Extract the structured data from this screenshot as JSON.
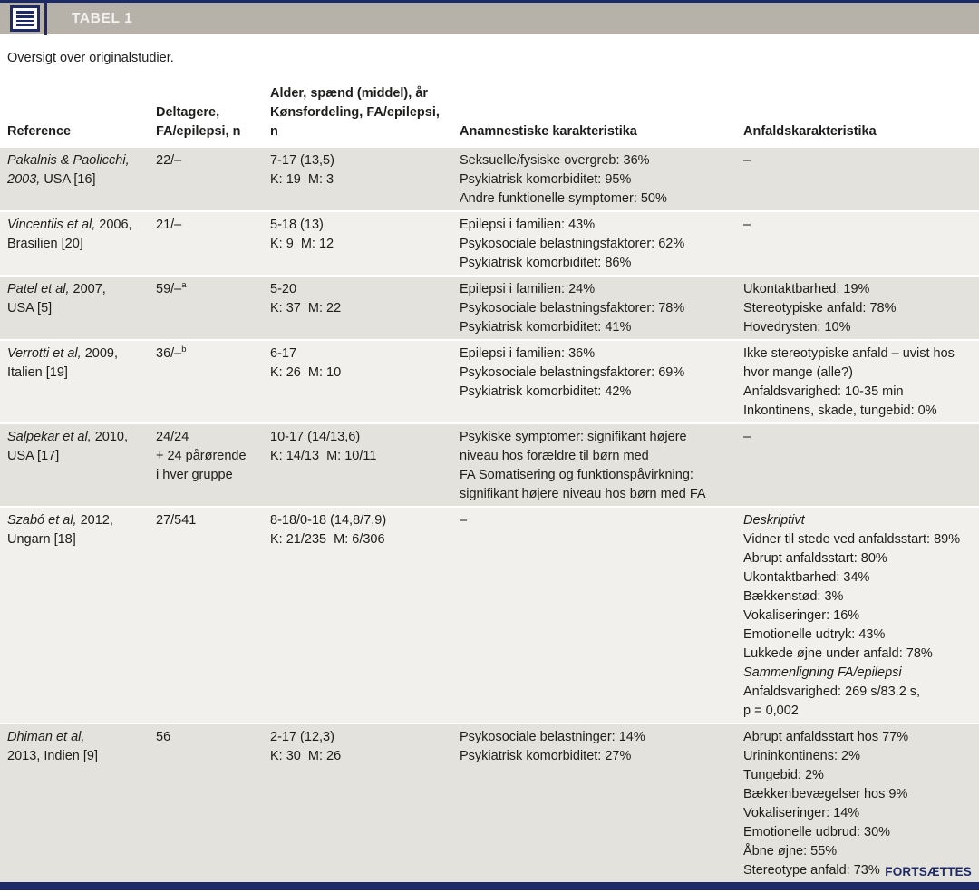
{
  "header": {
    "tag_label": "TABEL 1",
    "caption": "Oversigt over originalstudier."
  },
  "icons": {
    "title_icon": "table-list-icon"
  },
  "colors": {
    "navy": "#1e2a68",
    "bar_bg": "#b7b2a9",
    "row_shade_dark": "#e4e2dd",
    "row_shade_light": "#f1f0ed"
  },
  "footer": {
    "label": "FORTSÆTTES"
  },
  "table": {
    "headers": [
      {
        "lines": [
          "Reference"
        ]
      },
      {
        "lines": [
          "Deltagere,",
          "FA/epilepsi, n"
        ]
      },
      {
        "lines": [
          "Alder, spænd (middel), år",
          "Kønsfordeling, FA/epilepsi, n"
        ]
      },
      {
        "lines": [
          "Anamnestiske karakteristika"
        ]
      },
      {
        "lines": [
          "Anfaldskarakteristika"
        ]
      }
    ],
    "rows": [
      {
        "reference": [
          [
            {
              "t": "Pakalnis & Paolicchi,",
              "i": true
            }
          ],
          [
            {
              "t": "2003,",
              "i": true
            },
            {
              "t": " USA [16]"
            }
          ]
        ],
        "participants": [
          [
            "22/–"
          ]
        ],
        "age_gender": [
          [
            "7-17 (13,5)"
          ],
          [
            "K: 19  M: 3"
          ]
        ],
        "anamnestic": [
          [
            "Seksuelle/fysiske overgreb: 36%"
          ],
          [
            "Psykiatrisk komorbiditet: 95%"
          ],
          [
            "Andre funktionelle symptomer: 50%"
          ]
        ],
        "seizure": [
          [
            "–"
          ]
        ]
      },
      {
        "reference": [
          [
            {
              "t": "Vincentiis et al,",
              "i": true
            },
            {
              "t": " 2006,"
            }
          ],
          [
            {
              "t": "Brasilien [20]"
            }
          ]
        ],
        "participants": [
          [
            "21/–"
          ]
        ],
        "age_gender": [
          [
            "5-18 (13)"
          ],
          [
            "K: 9  M: 12"
          ]
        ],
        "anamnestic": [
          [
            "Epilepsi i familien: 43%"
          ],
          [
            "Psykosociale belastningsfaktorer: 62%"
          ],
          [
            "Psykiatrisk komorbiditet: 86%"
          ]
        ],
        "seizure": [
          [
            "–"
          ]
        ]
      },
      {
        "reference": [
          [
            {
              "t": "Patel et al,",
              "i": true
            },
            {
              "t": " 2007,"
            }
          ],
          [
            {
              "t": "USA [5]"
            }
          ]
        ],
        "participants": [
          [
            {
              "t": "59/–"
            },
            {
              "t": "a",
              "sup": true
            }
          ]
        ],
        "age_gender": [
          [
            "5-20"
          ],
          [
            "K: 37  M: 22"
          ]
        ],
        "anamnestic": [
          [
            "Epilepsi i familien: 24%"
          ],
          [
            "Psykosociale belastningsfaktorer: 78%"
          ],
          [
            "Psykiatrisk komorbiditet: 41%"
          ]
        ],
        "seizure": [
          [
            "Ukontaktbarhed: 19%"
          ],
          [
            "Stereotypiske anfald: 78%"
          ],
          [
            "Hovedrysten: 10%"
          ]
        ]
      },
      {
        "reference": [
          [
            {
              "t": "Verrotti et al,",
              "i": true
            },
            {
              "t": " 2009,"
            }
          ],
          [
            {
              "t": "Italien [19]"
            }
          ]
        ],
        "participants": [
          [
            {
              "t": "36/–"
            },
            {
              "t": "b",
              "sup": true
            }
          ]
        ],
        "age_gender": [
          [
            "6-17"
          ],
          [
            "K: 26  M: 10"
          ]
        ],
        "anamnestic": [
          [
            "Epilepsi i familien: 36%"
          ],
          [
            "Psykosociale belastningsfaktorer: 69%"
          ],
          [
            "Psykiatrisk komorbiditet: 42%"
          ]
        ],
        "seizure": [
          [
            "Ikke stereotypiske anfald – uvist hos"
          ],
          [
            "hvor mange (alle?)"
          ],
          [
            "Anfaldsvarighed: 10-35 min"
          ],
          [
            "Inkontinens, skade, tungebid: 0%"
          ]
        ]
      },
      {
        "reference": [
          [
            {
              "t": "Salpekar et al,",
              "i": true
            },
            {
              "t": " 2010,"
            }
          ],
          [
            {
              "t": "USA [17]"
            }
          ]
        ],
        "participants": [
          [
            "24/24"
          ],
          [
            "+ 24 pårørende"
          ],
          [
            "i hver gruppe"
          ]
        ],
        "age_gender": [
          [
            "10-17 (14/13,6)"
          ],
          [
            "K: 14/13  M: 10/11"
          ]
        ],
        "anamnestic": [
          [
            "Psykiske symptomer: signifikant højere"
          ],
          [
            "niveau hos forældre til børn med"
          ],
          [
            "FA Somatisering og funktionspåvirkning:"
          ],
          [
            "signifikant højere niveau hos børn med FA"
          ]
        ],
        "seizure": [
          [
            "–"
          ]
        ]
      },
      {
        "reference": [
          [
            {
              "t": "Szabó et al,",
              "i": true
            },
            {
              "t": " 2012,"
            }
          ],
          [
            {
              "t": "Ungarn [18]"
            }
          ]
        ],
        "participants": [
          [
            "27/541"
          ]
        ],
        "age_gender": [
          [
            "8-18/0-18 (14,8/7,9)"
          ],
          [
            "K: 21/235  M: 6/306"
          ]
        ],
        "anamnestic": [
          [
            "–"
          ]
        ],
        "seizure": [
          [
            {
              "t": "Deskriptivt",
              "i": true
            }
          ],
          [
            "Vidner til stede ved anfaldsstart: 89%"
          ],
          [
            "Abrupt anfaldsstart: 80%"
          ],
          [
            "Ukontaktbarhed: 34%"
          ],
          [
            "Bækkenstød: 3%"
          ],
          [
            "Vokaliseringer: 16%"
          ],
          [
            "Emotionelle udtryk: 43%"
          ],
          [
            "Lukkede øjne under anfald: 78%"
          ],
          [
            {
              "t": "Sammenligning FA/epilepsi",
              "i": true
            }
          ],
          [
            "Anfaldsvarighed: 269 s/83.2 s,"
          ],
          [
            "p = 0,002"
          ]
        ]
      },
      {
        "reference": [
          [
            {
              "t": "Dhiman et al,",
              "i": true
            }
          ],
          [
            {
              "t": "2013, Indien [9]"
            }
          ]
        ],
        "participants": [
          [
            "56"
          ]
        ],
        "age_gender": [
          [
            "2-17 (12,3)"
          ],
          [
            "K: 30  M: 26"
          ]
        ],
        "anamnestic": [
          [
            "Psykosociale belastninger: 14%"
          ],
          [
            "Psykiatrisk komorbiditet: 27%"
          ]
        ],
        "seizure": [
          [
            "Abrupt anfaldsstart hos 77%"
          ],
          [
            "Urininkontinens: 2%"
          ],
          [
            "Tungebid: 2%"
          ],
          [
            "Bækkenbevægelser hos 9%"
          ],
          [
            "Vokaliseringer: 14%"
          ],
          [
            "Emotionelle udbrud: 30%"
          ],
          [
            "Åbne øjne: 55%"
          ],
          [
            "Stereotype anfald: 73%"
          ]
        ]
      }
    ]
  }
}
